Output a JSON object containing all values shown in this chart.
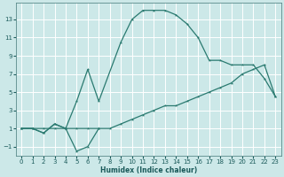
{
  "xlabel": "Humidex (Indice chaleur)",
  "bg_color": "#cce8e8",
  "grid_color": "#ffffff",
  "line_color": "#2a7a70",
  "xlim": [
    -0.5,
    23.5
  ],
  "ylim": [
    -2.0,
    14.8
  ],
  "xticks": [
    0,
    1,
    2,
    3,
    4,
    5,
    6,
    7,
    8,
    9,
    10,
    11,
    12,
    13,
    14,
    15,
    16,
    17,
    18,
    19,
    20,
    21,
    22,
    23
  ],
  "yticks": [
    -1,
    1,
    3,
    5,
    7,
    9,
    11,
    13
  ],
  "line1_x": [
    0,
    1,
    2,
    3,
    4,
    5,
    6,
    7,
    8,
    9,
    10,
    11,
    12,
    13,
    14,
    15,
    16,
    17,
    18,
    19,
    20,
    21,
    22,
    23
  ],
  "line1_y": [
    1,
    1,
    1,
    1,
    1,
    1,
    1,
    1,
    1,
    1.5,
    2,
    2.5,
    3,
    3.5,
    3.5,
    4,
    4.5,
    5,
    5.5,
    6,
    7,
    7.5,
    8,
    4.5
  ],
  "line2_x": [
    0,
    1,
    2,
    3,
    4,
    5,
    6,
    7,
    9,
    10,
    11,
    12,
    13,
    14,
    15,
    16,
    17,
    18,
    19,
    20,
    21,
    22,
    23
  ],
  "line2_y": [
    1,
    1,
    0.5,
    1.5,
    1.0,
    4.0,
    7.5,
    4.0,
    10.5,
    13.0,
    14.0,
    14.0,
    14.0,
    13.5,
    12.5,
    11.0,
    8.5,
    8.5,
    8.0,
    8.0,
    8.0,
    6.5,
    4.5
  ],
  "line3_x": [
    0,
    1,
    2,
    3,
    4,
    5,
    6,
    7
  ],
  "line3_y": [
    1,
    1,
    0.5,
    1.5,
    1.0,
    -1.5,
    -1.0,
    1.0
  ]
}
